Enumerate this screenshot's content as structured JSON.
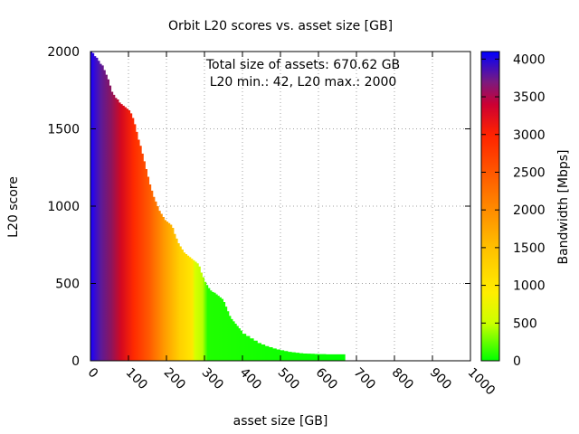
{
  "chart_data": {
    "type": "area",
    "title": "Orbit L20 scores vs. asset size [GB]",
    "xlabel": "asset size [GB]",
    "ylabel": "L20 score",
    "xlim": [
      0,
      1000
    ],
    "ylim": [
      0,
      2000
    ],
    "xticks": [
      "0",
      "100",
      "200",
      "300",
      "400",
      "500",
      "600",
      "700",
      "800",
      "900",
      "1000"
    ],
    "yticks": [
      "0",
      "500",
      "1000",
      "1500",
      "2000"
    ],
    "grid": true,
    "annotations": [
      "Total size of assets: 670.62 GB",
      "L20 min.: 42, L20 max.: 2000"
    ],
    "colorbar": {
      "label": "Bandwidth [Mbps]",
      "range": [
        0,
        4100
      ],
      "ticks": [
        "0",
        "500",
        "1000",
        "1500",
        "2000",
        "2500",
        "3000",
        "3500",
        "4000"
      ],
      "stops": [
        {
          "value": 0,
          "color": "#00ff00"
        },
        {
          "value": 500,
          "color": "#ccff00"
        },
        {
          "value": 900,
          "color": "#ffee00"
        },
        {
          "value": 1500,
          "color": "#ffc000"
        },
        {
          "value": 2200,
          "color": "#ff7700"
        },
        {
          "value": 3000,
          "color": "#ff2200"
        },
        {
          "value": 3400,
          "color": "#cc0033"
        },
        {
          "value": 3700,
          "color": "#7a1a80"
        },
        {
          "value": 4100,
          "color": "#0000ff"
        }
      ]
    },
    "series": [
      {
        "x": [
          0,
          5,
          10,
          15,
          20,
          25,
          30,
          35,
          40,
          45,
          50,
          55,
          60,
          65,
          70,
          75,
          80,
          85,
          90,
          95,
          100,
          105,
          110,
          115,
          120,
          125,
          130,
          135,
          140,
          145,
          150,
          155,
          160,
          165,
          170,
          175,
          180,
          185,
          190,
          195,
          200,
          205,
          210,
          215,
          220,
          225,
          230,
          235,
          240,
          245,
          250,
          255,
          260,
          265,
          270,
          275,
          280,
          285,
          290,
          295,
          300,
          305,
          310,
          315,
          320,
          325,
          330,
          335,
          340,
          345,
          350,
          355,
          360,
          365,
          370,
          375,
          380,
          385,
          390,
          395,
          400,
          410,
          420,
          430,
          440,
          450,
          460,
          470,
          480,
          490,
          500,
          510,
          520,
          530,
          540,
          550,
          560,
          570,
          580,
          590,
          600,
          610,
          620,
          630,
          640,
          650,
          660,
          670.62
        ],
        "y": [
          2000,
          1990,
          1970,
          1960,
          1940,
          1920,
          1910,
          1880,
          1850,
          1820,
          1780,
          1740,
          1720,
          1700,
          1690,
          1670,
          1660,
          1650,
          1640,
          1630,
          1620,
          1600,
          1570,
          1530,
          1480,
          1430,
          1390,
          1340,
          1290,
          1240,
          1190,
          1140,
          1100,
          1060,
          1030,
          1000,
          970,
          950,
          930,
          910,
          900,
          890,
          880,
          860,
          820,
          790,
          760,
          740,
          720,
          700,
          690,
          680,
          670,
          660,
          650,
          640,
          630,
          610,
          570,
          540,
          510,
          490,
          470,
          455,
          445,
          440,
          430,
          420,
          410,
          400,
          380,
          350,
          320,
          290,
          270,
          255,
          240,
          225,
          210,
          195,
          175,
          160,
          145,
          130,
          115,
          105,
          95,
          88,
          80,
          73,
          68,
          63,
          58,
          55,
          52,
          49,
          47,
          46,
          45,
          44,
          43,
          43,
          42,
          42,
          42,
          42,
          42,
          42
        ]
      }
    ]
  }
}
